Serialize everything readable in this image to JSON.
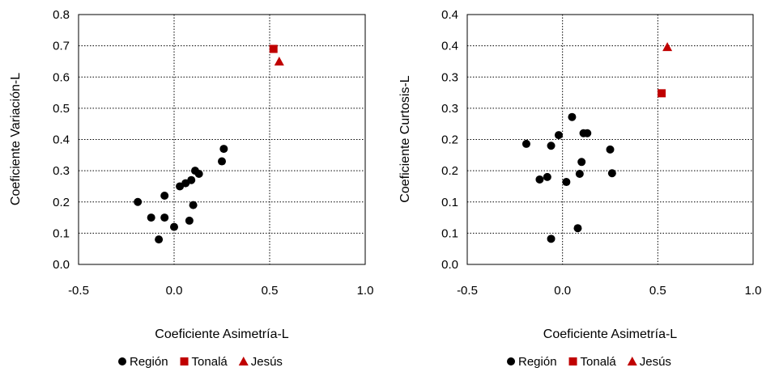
{
  "chart_data": [
    {
      "id": "cv",
      "type": "scatter",
      "xlabel": "Coeficiente Asimetría-L",
      "ylabel": "Coeficiente Variación-L",
      "xlim": [
        -0.5,
        1.0
      ],
      "ylim": [
        0.0,
        0.8
      ],
      "xticks": [
        -0.5,
        0.0,
        0.5,
        1.0
      ],
      "xtick_labels": [
        "-0.5",
        "0.0",
        "0.5",
        "1.0"
      ],
      "yticks": [
        0.0,
        0.1,
        0.2,
        0.3,
        0.4,
        0.5,
        0.6,
        0.7,
        0.8
      ],
      "ytick_labels": [
        "0.0",
        "0.1",
        "0.2",
        "0.3",
        "0.4",
        "0.5",
        "0.6",
        "0.7",
        "0.8"
      ],
      "grid": "dotted",
      "reference_lines": {
        "x": 0.5,
        "y": 0.5
      },
      "legend_position": "bottom",
      "series": [
        {
          "name": "Región",
          "marker": "circle",
          "color": "#000000",
          "points": [
            [
              -0.19,
              0.2
            ],
            [
              -0.12,
              0.15
            ],
            [
              -0.08,
              0.08
            ],
            [
              -0.05,
              0.15
            ],
            [
              -0.05,
              0.22
            ],
            [
              0.0,
              0.12
            ],
            [
              0.03,
              0.25
            ],
            [
              0.06,
              0.26
            ],
            [
              0.08,
              0.14
            ],
            [
              0.09,
              0.27
            ],
            [
              0.1,
              0.19
            ],
            [
              0.11,
              0.3
            ],
            [
              0.13,
              0.29
            ],
            [
              0.25,
              0.33
            ],
            [
              0.26,
              0.37
            ]
          ]
        },
        {
          "name": "Tonalá",
          "marker": "square",
          "color": "#C00000",
          "points": [
            [
              0.52,
              0.69
            ]
          ]
        },
        {
          "name": "Jesús",
          "marker": "triangle",
          "color": "#C00000",
          "points": [
            [
              0.55,
              0.65
            ]
          ]
        }
      ]
    },
    {
      "id": "ck",
      "type": "scatter",
      "xlabel": "Coeficiente Asimetría-L",
      "ylabel": "Coeficiente Curtosis-L",
      "xlim": [
        -0.5,
        1.0
      ],
      "ylim": [
        0.0,
        0.4
      ],
      "xticks": [
        -0.5,
        0.0,
        0.5,
        1.0
      ],
      "xtick_labels": [
        "-0.5",
        "0.0",
        "0.5",
        "1.0"
      ],
      "yticks": [
        0.0,
        0.05,
        0.1,
        0.15,
        0.2,
        0.25,
        0.3,
        0.35,
        0.4
      ],
      "ytick_labels": [
        "0.0",
        "0.1",
        "0.1",
        "0.2",
        "0.2",
        "0.3",
        "0.3",
        "0.4",
        "0.4"
      ],
      "grid": "dotted",
      "reference_lines": {
        "x": 0.5,
        "y": 0.25
      },
      "legend_position": "bottom",
      "series": [
        {
          "name": "Región",
          "marker": "circle",
          "color": "#000000",
          "points": [
            [
              -0.19,
              0.193
            ],
            [
              -0.12,
              0.136
            ],
            [
              -0.08,
              0.14
            ],
            [
              -0.06,
              0.19
            ],
            [
              -0.06,
              0.041
            ],
            [
              -0.02,
              0.207
            ],
            [
              0.02,
              0.132
            ],
            [
              0.05,
              0.236
            ],
            [
              0.08,
              0.058
            ],
            [
              0.09,
              0.145
            ],
            [
              0.1,
              0.164
            ],
            [
              0.11,
              0.21
            ],
            [
              0.13,
              0.21
            ],
            [
              0.25,
              0.184
            ],
            [
              0.26,
              0.146
            ]
          ]
        },
        {
          "name": "Tonalá",
          "marker": "square",
          "color": "#C00000",
          "points": [
            [
              0.52,
              0.274
            ]
          ]
        },
        {
          "name": "Jesús",
          "marker": "triangle",
          "color": "#C00000",
          "points": [
            [
              0.55,
              0.348
            ]
          ]
        }
      ]
    }
  ]
}
